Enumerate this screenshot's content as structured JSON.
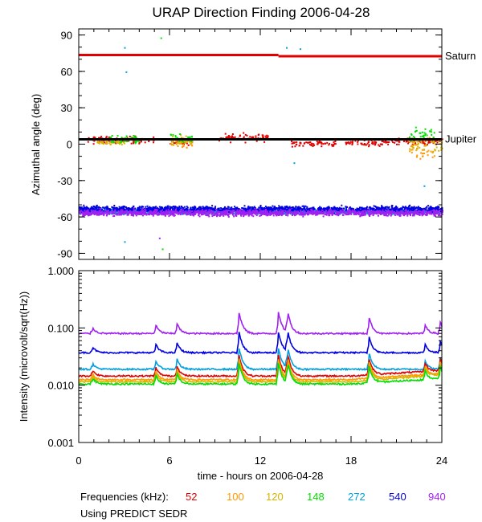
{
  "title": "URAP Direction Finding  2006-04-28",
  "chart_data": [
    {
      "type": "scatter",
      "name": "azimuth",
      "ylabel": "Azimuthal angle (deg)",
      "ylim": [
        -95,
        95
      ],
      "xlim": [
        0,
        24
      ],
      "yticks": [
        90,
        60,
        30,
        0,
        -30,
        -60,
        -90
      ],
      "reference_lines": [
        {
          "name": "Saturn",
          "color": "#e00000",
          "segments": [
            [
              0,
              13.2,
              73.5
            ],
            [
              13.2,
              24,
              72.5
            ]
          ]
        },
        {
          "name": "Jupiter",
          "color": "#000000",
          "segments": [
            [
              0,
              24,
              4
            ]
          ]
        }
      ],
      "series": [
        {
          "freq": "52",
          "color": "#e00000",
          "clusters": [
            [
              0.5,
              5,
              4,
              3.5
            ],
            [
              6,
              7.5,
              3,
              4
            ],
            [
              9.2,
              12.5,
              6,
              4
            ],
            [
              14,
              17,
              1,
              3
            ],
            [
              17.5,
              20.5,
              2,
              3
            ],
            [
              20.5,
              24,
              3,
              3
            ]
          ]
        },
        {
          "freq": "100",
          "color": "#ff9900",
          "clusters": [
            [
              6,
              7.5,
              2,
              5
            ],
            [
              21.8,
              23.5,
              -5,
              10
            ]
          ]
        },
        {
          "freq": "120",
          "color": "#d8b400",
          "clusters": [
            [
              1,
              3,
              2,
              2
            ],
            [
              6,
              7.5,
              3,
              5
            ],
            [
              21.8,
              24,
              0,
              8
            ]
          ]
        },
        {
          "freq": "148",
          "color": "#00e000",
          "clusters": [
            [
              2,
              4,
              4,
              4
            ],
            [
              6,
              7.5,
              5,
              5
            ],
            [
              21.8,
              23.5,
              8,
              8
            ]
          ]
        },
        {
          "freq": "272",
          "color": "#00a0e0",
          "clusters": [
            [
              0,
              24,
              -55,
              2.5
            ]
          ]
        },
        {
          "freq": "540",
          "color": "#0000e0",
          "clusters": [
            [
              0,
              24,
              -53,
              3
            ]
          ]
        },
        {
          "freq": "940",
          "color": "#a020f0",
          "clusters": [
            [
              0,
              24,
              -56,
              3
            ]
          ]
        }
      ],
      "outliers": [
        [
          3,
          80,
          "#00a0e0"
        ],
        [
          3.1,
          60,
          "#00a0e0"
        ],
        [
          5.4,
          88,
          "#00e000"
        ],
        [
          13.7,
          80,
          "#00a0e0"
        ],
        [
          14.6,
          79,
          "#00a0e0"
        ],
        [
          3,
          -80,
          "#00a0e0"
        ],
        [
          5.3,
          -77,
          "#a020f0"
        ],
        [
          5.5,
          -86,
          "#00e000"
        ],
        [
          14.2,
          -15,
          "#00a0e0"
        ],
        [
          22.8,
          -34,
          "#00a0e0"
        ]
      ]
    },
    {
      "type": "line",
      "name": "intensity",
      "ylabel": "Intensity (microvolt/sqrt(Hz))",
      "yscale": "log",
      "ylim": [
        0.001,
        1.0
      ],
      "xlim": [
        0,
        24
      ],
      "xlabel": "time - hours on 2006-04-28",
      "xticks": [
        0,
        6,
        12,
        18,
        24
      ],
      "ytick_labels": [
        "1.000",
        "0.100",
        "0.010",
        "0.001"
      ],
      "ytick_values": [
        1.0,
        0.1,
        0.01,
        0.001
      ],
      "series": [
        {
          "freq": "940",
          "color": "#a020f0",
          "base": 0.08,
          "tail": 0.08
        },
        {
          "freq": "540",
          "color": "#0000e0",
          "base": 0.037,
          "tail": 0.037
        },
        {
          "freq": "272",
          "color": "#00a0e0",
          "base": 0.019,
          "tail": 0.019
        },
        {
          "freq": "52",
          "color": "#e00000",
          "base": 0.0145,
          "tail": 0.018
        },
        {
          "freq": "100",
          "color": "#ff9900",
          "base": 0.0125,
          "tail": 0.016
        },
        {
          "freq": "120",
          "color": "#d8b400",
          "base": 0.0115,
          "tail": 0.015
        },
        {
          "freq": "148",
          "color": "#00e000",
          "base": 0.0105,
          "tail": 0.013
        }
      ],
      "bursts": [
        [
          0.9,
          0.3
        ],
        [
          5.1,
          0.4
        ],
        [
          6.5,
          0.5
        ],
        [
          10.6,
          1.3
        ],
        [
          13.2,
          1.3
        ],
        [
          13.8,
          1.4
        ],
        [
          19.2,
          0.9
        ],
        [
          22.9,
          0.4
        ],
        [
          23.9,
          0.6
        ]
      ]
    }
  ],
  "legend": {
    "label": "Frequencies (kHz):",
    "items": [
      {
        "text": "52",
        "color": "#e00000"
      },
      {
        "text": "100",
        "color": "#ff9900"
      },
      {
        "text": "120",
        "color": "#d8b400"
      },
      {
        "text": "148",
        "color": "#00e000"
      },
      {
        "text": "272",
        "color": "#00a0e0"
      },
      {
        "text": "540",
        "color": "#0000e0"
      },
      {
        "text": "940",
        "color": "#a020f0"
      }
    ]
  },
  "note": "Using PREDICT SEDR"
}
